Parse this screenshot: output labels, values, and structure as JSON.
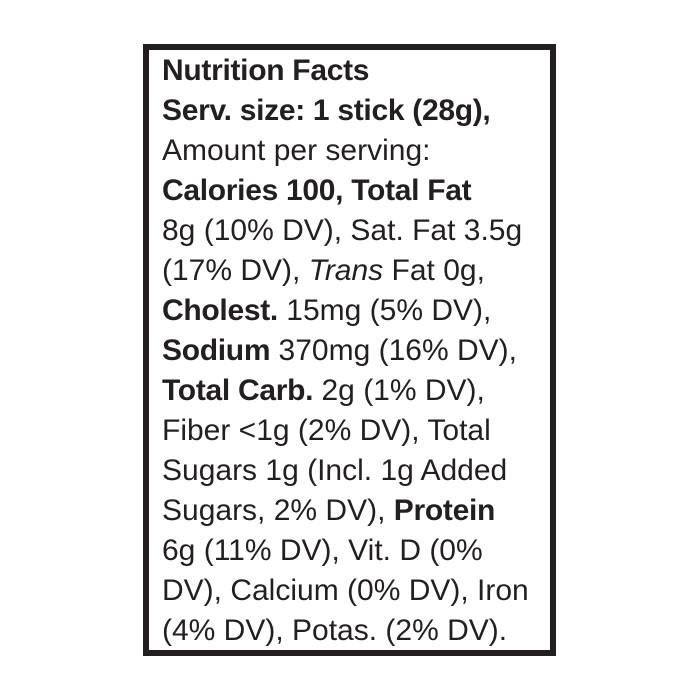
{
  "label": {
    "title": "Nutrition Facts",
    "colors": {
      "text": "#231f20",
      "border": "#231f20",
      "background": "#ffffff"
    },
    "lines": [
      {
        "segments": [
          {
            "text": "Nutrition Facts",
            "style": "bold"
          }
        ]
      },
      {
        "segments": [
          {
            "text": "Serv. size: 1 stick (28g),",
            "style": "bold"
          }
        ]
      },
      {
        "segments": [
          {
            "text": "Amount per serving:",
            "style": "regular"
          }
        ]
      },
      {
        "segments": [
          {
            "text": "Calories 100, Total Fat",
            "style": "bold"
          }
        ]
      },
      {
        "segments": [
          {
            "text": "8g (10% DV), Sat. Fat 3.5g",
            "style": "regular"
          }
        ]
      },
      {
        "segments": [
          {
            "text": "(17% DV), ",
            "style": "regular"
          },
          {
            "text": "Trans",
            "style": "italic"
          },
          {
            "text": " Fat 0g,",
            "style": "regular"
          }
        ]
      },
      {
        "segments": [
          {
            "text": "Cholest.",
            "style": "bold"
          },
          {
            "text": " 15mg (5% DV),",
            "style": "regular"
          }
        ]
      },
      {
        "segments": [
          {
            "text": "Sodium",
            "style": "bold"
          },
          {
            "text": " 370mg (16% DV),",
            "style": "regular"
          }
        ]
      },
      {
        "segments": [
          {
            "text": "Total Carb.",
            "style": "bold"
          },
          {
            "text": " 2g (1% DV),",
            "style": "regular"
          }
        ]
      },
      {
        "segments": [
          {
            "text": "Fiber <1g (2% DV), Total",
            "style": "regular"
          }
        ]
      },
      {
        "segments": [
          {
            "text": "Sugars 1g (Incl. 1g Added",
            "style": "regular"
          }
        ]
      },
      {
        "segments": [
          {
            "text": "Sugars, 2% DV), ",
            "style": "regular"
          },
          {
            "text": "Protein",
            "style": "bold"
          }
        ]
      },
      {
        "segments": [
          {
            "text": "6g (11% DV), Vit. D (0%",
            "style": "regular"
          }
        ]
      },
      {
        "segments": [
          {
            "text": "DV), Calcium (0% DV), Iron",
            "style": "regular"
          }
        ]
      },
      {
        "segments": [
          {
            "text": "(4% DV), Potas. (2% DV).",
            "style": "regular"
          }
        ]
      }
    ],
    "nutrition_facts": {
      "serving_size": "1 stick (28g)",
      "calories": "100",
      "total_fat": "8g (10% DV)",
      "saturated_fat": "3.5g (17% DV)",
      "trans_fat": "0g",
      "cholesterol": "15mg (5% DV)",
      "sodium": "370mg (16% DV)",
      "total_carbohydrate": "2g (1% DV)",
      "dietary_fiber": "<1g (2% DV)",
      "total_sugars": "1g (Incl. 1g Added Sugars, 2% DV)",
      "protein": "6g (11% DV)",
      "vitamin_d": "0% DV",
      "calcium": "0% DV",
      "iron": "4% DV",
      "potassium": "2% DV"
    }
  }
}
